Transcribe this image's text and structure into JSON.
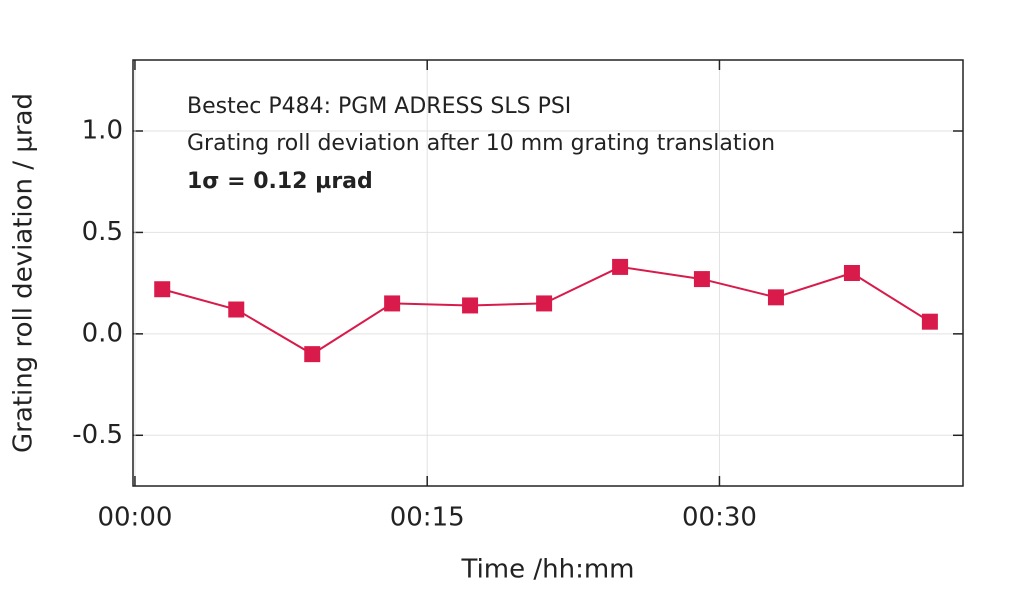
{
  "chart_data": {
    "type": "line",
    "annotations": [
      "Bestec P484: PGM ADRESS SLS PSI",
      "Grating roll deviation after 10 mm grating translation",
      "1σ = 0.12 µrad"
    ],
    "x_label": "Time /hh:mm",
    "y_label": "Grating roll deviation / µrad",
    "x": [
      1.4,
      5.2,
      9.1,
      13.2,
      17.2,
      21.0,
      24.9,
      29.1,
      32.9,
      36.8,
      40.8
    ],
    "series": [
      {
        "color": "#d81b4a",
        "values": [
          0.22,
          0.12,
          -0.1,
          0.15,
          0.14,
          0.15,
          0.33,
          0.27,
          0.18,
          0.3,
          0.06
        ]
      }
    ],
    "xlim": [
      -0.1,
      42.5
    ],
    "xticks": [
      {
        "value": 0,
        "label": "00:00"
      },
      {
        "value": 15,
        "label": "00:15"
      },
      {
        "value": 30,
        "label": "00:30"
      }
    ],
    "ylim": [
      -0.75,
      1.35
    ],
    "yticks": [
      {
        "value": -0.5,
        "label": "-0.5"
      },
      {
        "value": 0,
        "label": "0.0"
      },
      {
        "value": 0.5,
        "label": "0.5"
      },
      {
        "value": 1,
        "label": "1.0"
      }
    ],
    "grid": true
  }
}
